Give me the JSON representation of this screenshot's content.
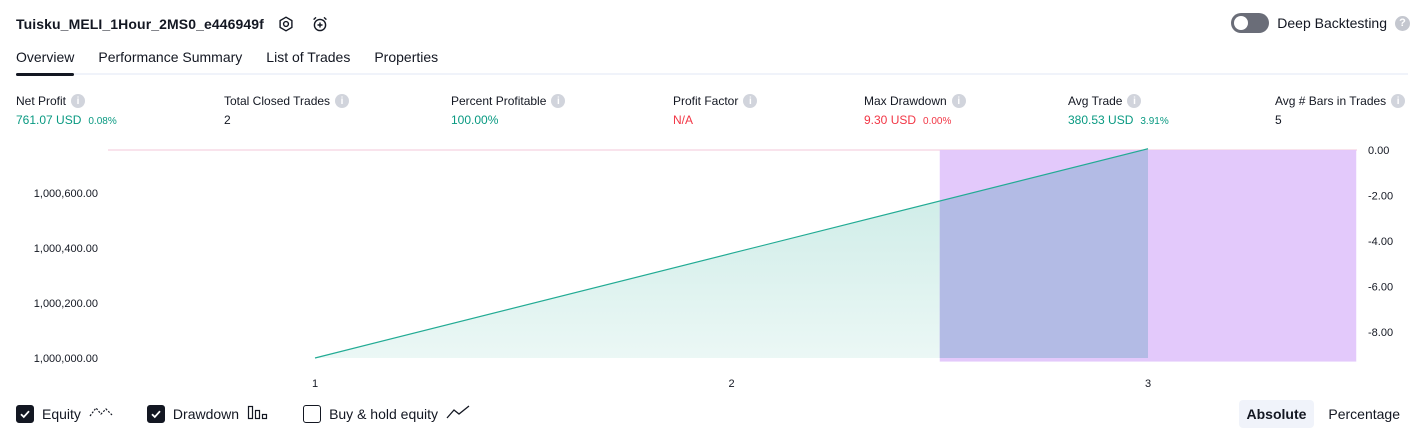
{
  "header": {
    "strategy_title": "Tuisku_MELI_1Hour_2MS0_e446949f",
    "icons": [
      "settings-icon",
      "add-alert-icon"
    ]
  },
  "deep_backtesting": {
    "label": "Deep Backtesting",
    "enabled": false,
    "help_glyph": "?"
  },
  "tabs": [
    {
      "label": "Overview",
      "active": true
    },
    {
      "label": "Performance Summary",
      "active": false
    },
    {
      "label": "List of Trades",
      "active": false
    },
    {
      "label": "Properties",
      "active": false
    }
  ],
  "metrics": {
    "net_profit": {
      "label": "Net Profit",
      "value": "761.07 USD",
      "pct": "0.08%"
    },
    "total_closed_trades": {
      "label": "Total Closed Trades",
      "value": "2"
    },
    "percent_profitable": {
      "label": "Percent Profitable",
      "value": "100.00%"
    },
    "profit_factor": {
      "label": "Profit Factor",
      "value": "N/A"
    },
    "max_drawdown": {
      "label": "Max Drawdown",
      "value": "9.30 USD",
      "pct": "0.00%"
    },
    "avg_trade": {
      "label": "Avg Trade",
      "value": "380.53 USD",
      "pct": "3.91%"
    },
    "avg_bars_in_trades": {
      "label": "Avg # Bars in Trades",
      "value": "5"
    }
  },
  "chart_data": {
    "type": "area",
    "x_ticks": [
      "1",
      "2",
      "3"
    ],
    "y_left_ticks": [
      "1,000,600.00",
      "1,000,400.00",
      "1,000,200.00",
      "1,000,000.00"
    ],
    "y_right_ticks": [
      "0.00",
      "-2.00",
      "-4.00",
      "-6.00",
      "-8.00"
    ],
    "series": [
      {
        "name": "Equity",
        "x": [
          1,
          2,
          3
        ],
        "y": [
          1000000.0,
          1000380.53,
          1000761.07
        ],
        "color": "#22ab94"
      },
      {
        "name": "Drawdown",
        "x": [
          2.5,
          3,
          3.5
        ],
        "y": [
          -9.3,
          -9.3,
          -9.3
        ],
        "color": "#c8a6f5"
      }
    ],
    "colors": {
      "equity_line": "#22ab94",
      "equity_fill": "#22ab94",
      "drawdown": "#e1c6fb",
      "overlap": "#aab8e0"
    }
  },
  "legend": [
    {
      "label": "Equity",
      "checked": true,
      "icon": "equity-line-icon"
    },
    {
      "label": "Drawdown",
      "checked": true,
      "icon": "drawdown-bars-icon"
    },
    {
      "label": "Buy & hold equity",
      "checked": false,
      "icon": "buy-hold-line-icon"
    }
  ],
  "modes": [
    {
      "label": "Absolute",
      "active": true
    },
    {
      "label": "Percentage",
      "active": false
    }
  ]
}
